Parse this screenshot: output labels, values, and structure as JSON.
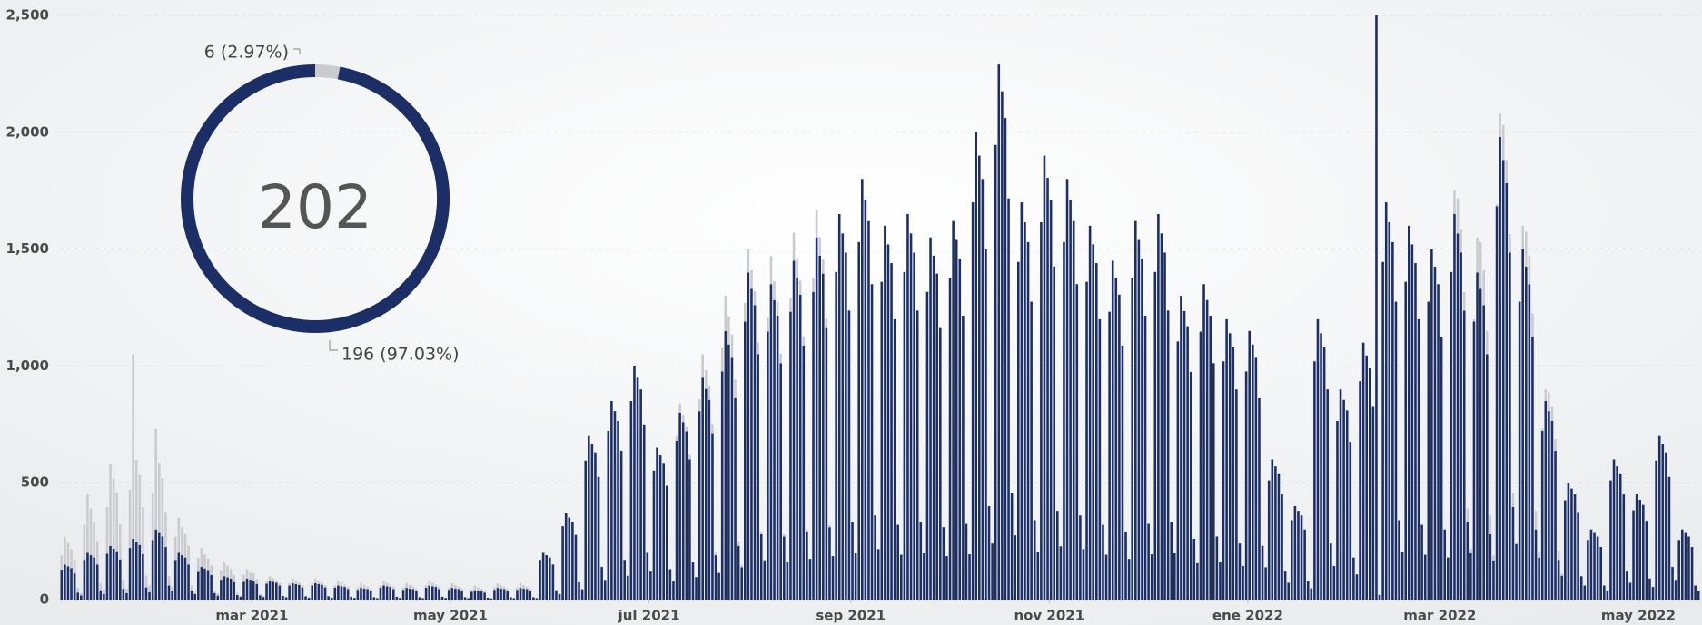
{
  "chart_data": [
    {
      "type": "bar",
      "stacked": true,
      "xlim": [
        0,
        504
      ],
      "ylim": [
        0,
        2500
      ],
      "yticks": [
        0,
        500,
        {
          "value": 1000,
          "label": "1,000"
        },
        {
          "value": 1500,
          "label": "1,500"
        },
        {
          "value": 2000,
          "label": "2,000"
        },
        {
          "value": 2500,
          "label": "2,500"
        }
      ],
      "xticks": [
        {
          "value": 59,
          "label": "mar 2021"
        },
        {
          "value": 120,
          "label": "may 2021"
        },
        {
          "value": 181,
          "label": "jul 2021"
        },
        {
          "value": 243,
          "label": "sep 2021"
        },
        {
          "value": 304,
          "label": "nov 2021"
        },
        {
          "value": 365,
          "label": "ene 2022"
        },
        {
          "value": 424,
          "label": "mar 2022"
        },
        {
          "value": 485,
          "label": "may 2022"
        }
      ],
      "grid": true,
      "series": [
        {
          "color": "#1b2e66",
          "values": [
            128,
            150,
            142,
            135,
            112,
            30,
            18,
            170,
            200,
            190,
            180,
            150,
            40,
            24,
            196,
            230,
            218,
            207,
            172,
            46,
            28,
            221,
            260,
            247,
            234,
            195,
            52,
            31,
            255,
            300,
            285,
            270,
            225,
            60,
            36,
            170,
            200,
            190,
            180,
            150,
            40,
            24,
            119,
            140,
            133,
            126,
            105,
            28,
            17,
            85,
            100,
            95,
            90,
            75,
            20,
            12,
            76,
            90,
            85,
            81,
            67,
            18,
            11,
            68,
            80,
            76,
            72,
            60,
            16,
            10,
            60,
            70,
            66,
            63,
            52,
            14,
            8,
            60,
            70,
            66,
            63,
            52,
            14,
            8,
            51,
            60,
            57,
            54,
            45,
            12,
            7,
            42,
            50,
            47,
            45,
            37,
            10,
            6,
            51,
            60,
            57,
            54,
            45,
            12,
            7,
            42,
            50,
            47,
            45,
            37,
            10,
            6,
            51,
            60,
            57,
            54,
            45,
            12,
            7,
            42,
            50,
            47,
            45,
            37,
            10,
            6,
            34,
            40,
            38,
            36,
            30,
            8,
            5,
            42,
            50,
            47,
            45,
            37,
            10,
            6,
            42,
            50,
            47,
            45,
            37,
            10,
            6,
            170,
            200,
            190,
            180,
            150,
            40,
            24,
            314,
            370,
            351,
            333,
            277,
            74,
            44,
            595,
            700,
            665,
            630,
            525,
            140,
            84,
            722,
            850,
            807,
            765,
            637,
            170,
            102,
            850,
            1000,
            950,
            900,
            750,
            200,
            120,
            552,
            650,
            617,
            585,
            487,
            130,
            78,
            680,
            800,
            760,
            720,
            600,
            160,
            96,
            807,
            950,
            902,
            855,
            712,
            190,
            114,
            977,
            1150,
            1092,
            1035,
            862,
            230,
            138,
            1190,
            1400,
            1330,
            1260,
            1050,
            280,
            168,
            1147,
            1350,
            1282,
            1215,
            1012,
            270,
            162,
            1232,
            1450,
            1377,
            1305,
            1087,
            290,
            174,
            1317,
            1550,
            1472,
            1395,
            1162,
            310,
            186,
            1402,
            1650,
            1567,
            1485,
            1237,
            330,
            198,
            1530,
            1800,
            1710,
            1620,
            1350,
            360,
            216,
            1360,
            1600,
            1520,
            1440,
            1200,
            320,
            192,
            1402,
            1650,
            1567,
            1485,
            1237,
            330,
            198,
            1317,
            1550,
            1472,
            1395,
            1162,
            310,
            186,
            1377,
            1620,
            1539,
            1458,
            1215,
            324,
            194,
            1700,
            2000,
            1900,
            1800,
            1500,
            400,
            240,
            1946,
            2290,
            2175,
            2061,
            1717,
            458,
            275,
            1445,
            1700,
            1615,
            1530,
            1275,
            340,
            204,
            1615,
            1900,
            1805,
            1710,
            1425,
            380,
            228,
            1530,
            1800,
            1710,
            1620,
            1350,
            360,
            216,
            1360,
            1600,
            1520,
            1440,
            1200,
            320,
            192,
            1232,
            1450,
            1377,
            1305,
            1087,
            290,
            174,
            1377,
            1620,
            1539,
            1458,
            1215,
            324,
            194,
            1402,
            1650,
            1567,
            1485,
            1237,
            330,
            198,
            1105,
            1300,
            1235,
            1170,
            975,
            260,
            156,
            1147,
            1350,
            1282,
            1215,
            1012,
            270,
            162,
            1020,
            1200,
            1140,
            1080,
            900,
            240,
            144,
            977,
            1150,
            1092,
            1035,
            862,
            230,
            138,
            510,
            600,
            570,
            540,
            450,
            120,
            72,
            340,
            400,
            380,
            360,
            300,
            80,
            48,
            1020,
            1200,
            1140,
            1080,
            900,
            240,
            144,
            765,
            900,
            855,
            810,
            675,
            180,
            108,
            935,
            1100,
            1045,
            990,
            825,
            2500,
            20,
            1445,
            1700,
            1615,
            1530,
            1275,
            340,
            204,
            1360,
            1600,
            1520,
            1440,
            1200,
            320,
            192,
            1275,
            1500,
            1425,
            1350,
            1125,
            300,
            180,
            1402,
            1650,
            1567,
            1485,
            1237,
            330,
            198,
            1190,
            1400,
            1330,
            1260,
            1050,
            280,
            168,
            1683,
            1980,
            1881,
            1782,
            1485,
            396,
            238,
            1275,
            1500,
            1425,
            1350,
            1125,
            300,
            180,
            722,
            850,
            807,
            765,
            637,
            170,
            102,
            425,
            500,
            475,
            450,
            375,
            100,
            60,
            255,
            300,
            285,
            270,
            225,
            60,
            36,
            510,
            600,
            570,
            540,
            450,
            120,
            72,
            382,
            450,
            427,
            405,
            337,
            90,
            54,
            595,
            700,
            665,
            630,
            525,
            140,
            84,
            255,
            300,
            285,
            270,
            225,
            60,
            36
          ]
        },
        {
          "color": "#c9cbcf",
          "values": [
            60,
            120,
            100,
            80,
            60,
            20,
            10,
            150,
            250,
            200,
            150,
            100,
            30,
            20,
            200,
            350,
            300,
            250,
            150,
            40,
            20,
            250,
            790,
            350,
            300,
            200,
            50,
            30,
            200,
            430,
            300,
            250,
            150,
            40,
            20,
            100,
            150,
            120,
            100,
            80,
            20,
            10,
            60,
            80,
            60,
            50,
            40,
            10,
            10,
            40,
            60,
            50,
            40,
            30,
            10,
            5,
            30,
            40,
            30,
            30,
            20,
            5,
            5,
            10,
            20,
            15,
            10,
            10,
            0,
            0,
            10,
            20,
            15,
            10,
            10,
            0,
            0,
            10,
            20,
            15,
            10,
            10,
            0,
            0,
            10,
            20,
            15,
            10,
            10,
            0,
            0,
            10,
            20,
            15,
            10,
            10,
            0,
            0,
            10,
            20,
            15,
            10,
            10,
            0,
            0,
            10,
            20,
            15,
            10,
            10,
            0,
            0,
            10,
            20,
            15,
            10,
            10,
            0,
            0,
            10,
            20,
            15,
            10,
            10,
            0,
            0,
            10,
            20,
            15,
            10,
            10,
            0,
            0,
            10,
            20,
            15,
            10,
            10,
            0,
            0,
            10,
            20,
            15,
            10,
            10,
            0,
            0,
            0,
            0,
            0,
            0,
            0,
            0,
            0,
            0,
            0,
            0,
            0,
            0,
            0,
            0,
            0,
            0,
            0,
            0,
            0,
            0,
            0,
            0,
            0,
            0,
            0,
            0,
            0,
            0,
            0,
            0,
            0,
            0,
            0,
            0,
            0,
            0,
            0,
            0,
            0,
            0,
            0,
            0,
            20,
            40,
            30,
            20,
            20,
            0,
            0,
            50,
            100,
            80,
            60,
            40,
            10,
            0,
            100,
            150,
            120,
            100,
            80,
            20,
            10,
            80,
            100,
            80,
            60,
            50,
            10,
            0,
            60,
            120,
            80,
            60,
            40,
            10,
            0,
            60,
            120,
            80,
            60,
            40,
            10,
            0,
            60,
            120,
            80,
            60,
            40,
            10,
            0,
            0,
            0,
            0,
            0,
            0,
            0,
            0,
            0,
            0,
            0,
            0,
            0,
            0,
            0,
            0,
            0,
            0,
            0,
            0,
            0,
            0,
            0,
            0,
            0,
            0,
            0,
            0,
            0,
            0,
            0,
            0,
            0,
            0,
            0,
            0,
            0,
            0,
            0,
            0,
            0,
            0,
            0,
            0,
            0,
            0,
            0,
            0,
            0,
            0,
            0,
            0,
            0,
            0,
            0,
            0,
            0,
            0,
            0,
            0,
            0,
            0,
            0,
            0,
            0,
            0,
            0,
            0,
            0,
            0,
            0,
            0,
            0,
            0,
            0,
            0,
            0,
            0,
            0,
            0,
            0,
            0,
            0,
            0,
            0,
            0,
            0,
            0,
            0,
            0,
            0,
            0,
            0,
            0,
            0,
            0,
            0,
            0,
            0,
            0,
            0,
            0,
            0,
            0,
            0,
            0,
            0,
            0,
            0,
            0,
            0,
            0,
            0,
            0,
            0,
            0,
            0,
            0,
            0,
            0,
            0,
            0,
            0,
            0,
            0,
            0,
            0,
            0,
            0,
            0,
            0,
            0,
            0,
            0,
            0,
            0,
            0,
            0,
            0,
            0,
            0,
            0,
            0,
            0,
            0,
            0,
            0,
            0,
            0,
            0,
            0,
            0,
            0,
            0,
            0,
            0,
            0,
            0,
            0,
            0,
            0,
            0,
            0,
            0,
            0,
            0,
            0,
            0,
            0,
            0,
            0,
            0,
            0,
            0,
            0,
            0,
            0,
            0,
            0,
            0,
            0,
            0,
            0,
            0,
            0,
            0,
            0,
            0,
            0,
            0,
            0,
            100,
            150,
            100,
            80,
            60,
            20,
            10,
            150,
            200,
            150,
            100,
            80,
            20,
            10,
            100,
            150,
            100,
            80,
            60,
            0,
            0,
            100,
            150,
            120,
            100,
            80,
            20,
            10,
            50,
            80,
            60,
            50,
            40,
            10,
            0,
            0,
            0,
            0,
            0,
            0,
            0,
            0,
            0,
            0,
            0,
            0,
            0,
            0,
            0,
            0,
            0,
            0,
            0,
            0,
            0,
            0,
            0,
            0,
            0,
            0,
            0,
            0,
            0,
            0,
            0,
            0,
            0,
            0,
            0,
            0,
            0,
            0,
            0,
            0,
            0,
            0,
            0,
            0,
            0,
            0,
            0,
            0,
            0,
            0,
            0,
            0,
            0,
            0,
            0,
            0,
            0,
            0,
            0,
            0,
            0,
            0,
            0,
            0,
            0,
            0,
            0,
            0,
            0,
            0,
            0,
            0,
            0,
            0,
            0,
            0,
            0,
            0,
            0,
            0,
            0,
            0,
            0,
            0,
            0,
            0,
            0,
            0,
            0,
            0,
            0,
            0
          ]
        }
      ]
    },
    {
      "type": "pie",
      "total": 202,
      "values": [
        6,
        196
      ],
      "value_labels": [
        "6 (2.97%)",
        "196 (97.03%)"
      ],
      "colors": [
        "#c9cbcf",
        "#1b2e66"
      ]
    }
  ]
}
